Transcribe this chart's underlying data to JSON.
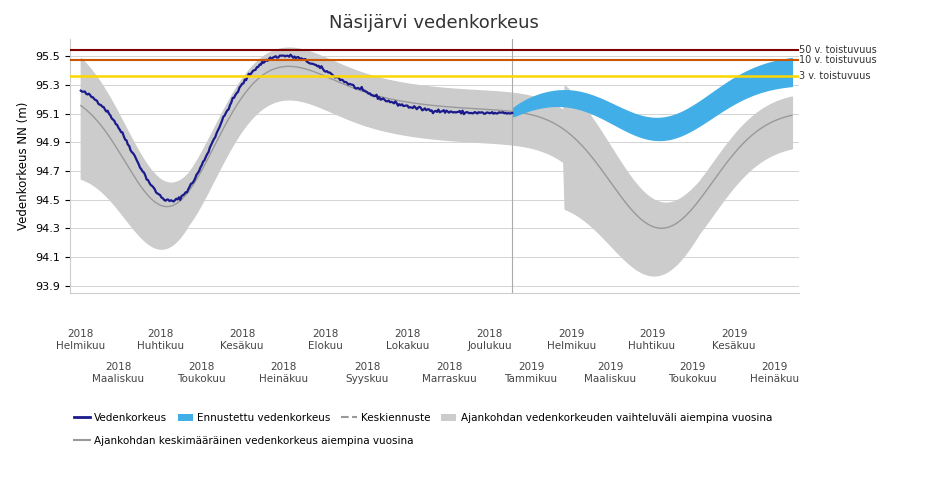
{
  "title": "Näsijärvi vedenkorkeus",
  "ylabel": "Vedenkorkeus NN (m)",
  "ylim": [
    93.85,
    95.62
  ],
  "yticks": [
    93.9,
    94.1,
    94.3,
    94.5,
    94.7,
    94.9,
    95.1,
    95.3,
    95.5
  ],
  "hlines": {
    "50v": {
      "y": 95.545,
      "color": "#800000",
      "label": "50 v. toistuvuus"
    },
    "10v": {
      "y": 95.475,
      "color": "#CC5500",
      "label": "10 v. toistuvuus"
    },
    "3v": {
      "y": 95.365,
      "color": "#FFD700",
      "label": "3 v. toistuvuus"
    }
  },
  "bg_color": "#ffffff",
  "grid_color": "#cccccc",
  "measured_color": "#1a1a8c",
  "forecast_fill_color": "#42aee8",
  "hist_fill_color": "#cccccc",
  "hist_mean_color": "#999999",
  "legend_labels": {
    "measured": "Vedenkorkeus",
    "forecast": "Ennustettu vedenkorkeus",
    "hist_mean": "Keskiennuste",
    "hist_range": "Ajankohdan vedenkorkeuden vaihteluväli aiempina vuosina",
    "hist_avg": "Ajankohdan keskimääräinen vedenkorkeus aiempina vuosina"
  },
  "even_positions": [
    0,
    59,
    120,
    182,
    243,
    304,
    365,
    425,
    486
  ],
  "even_labels": [
    "2018\nHelmikuu",
    "2018\nHuhtikuu",
    "2018\nKesäkuu",
    "2018\nElokuu",
    "2018\nLokakuu",
    "2018\nJoulukuu",
    "2019\nHelmikuu",
    "2019\nHuhtikuu",
    "2019\nKesäkuu"
  ],
  "odd_positions": [
    28,
    90,
    151,
    213,
    274,
    335,
    394,
    455,
    516
  ],
  "odd_labels": [
    "2018\nMaaliskuu",
    "2018\nToukokuu",
    "2018\nHeinäkuu",
    "2018\nSyyskuu",
    "2018\nMarraskuu",
    "2019\nTammikuu",
    "2019\nMaaliskuu",
    "2019\nToukokuu",
    "2019\nHeinäkuu"
  ]
}
